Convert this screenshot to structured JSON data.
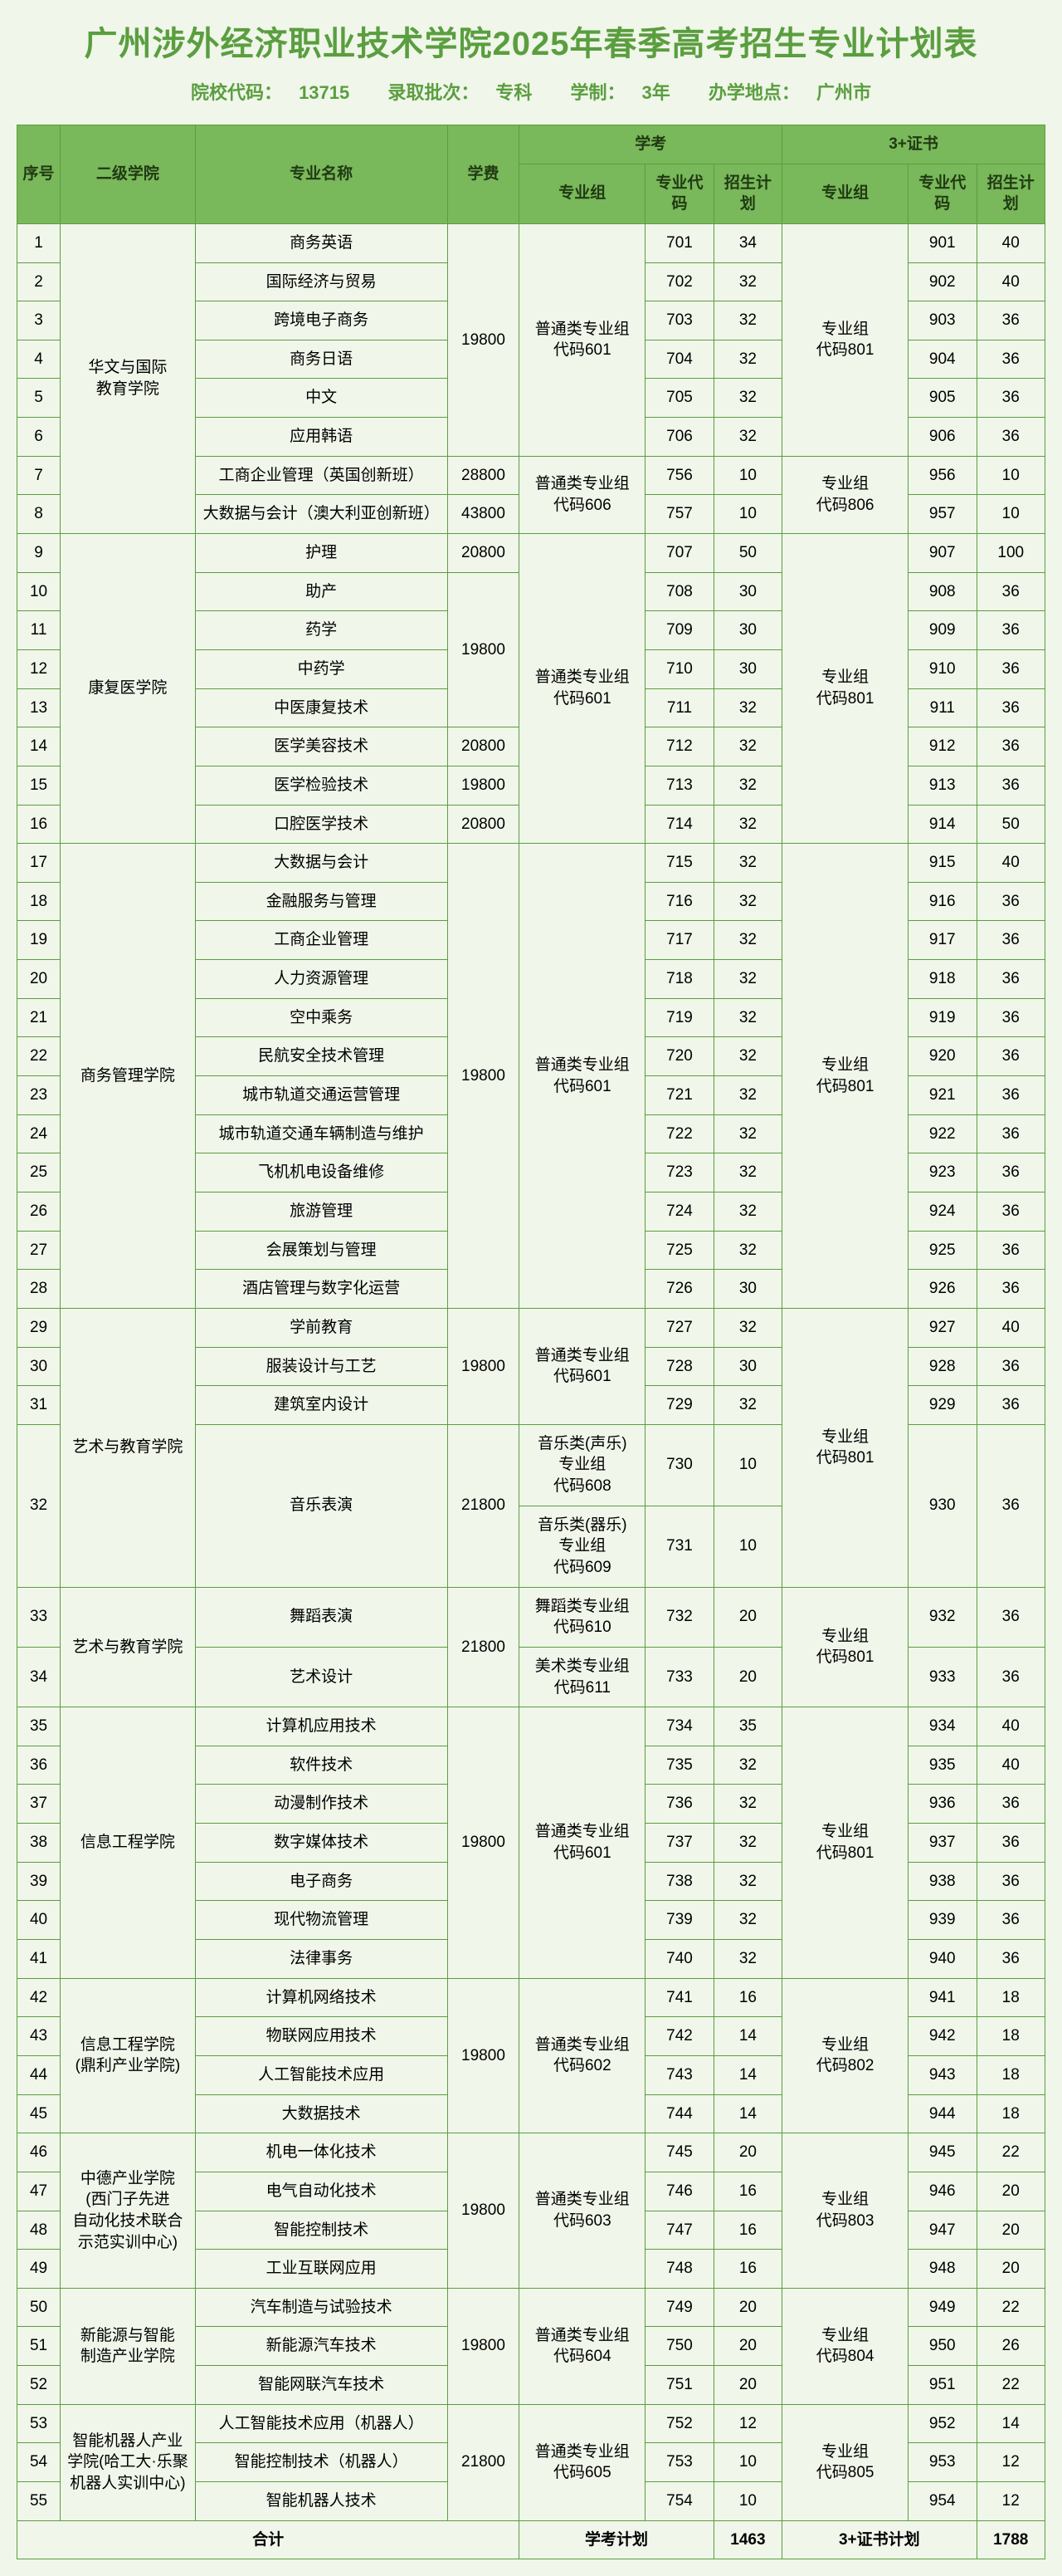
{
  "title": "广州涉外经济职业技术学院2025年春季高考招生专业计划表",
  "subtitle": {
    "school_code_label": "院校代码：",
    "school_code": "13715",
    "batch_label": "录取批次：",
    "batch": "专科",
    "system_label": "学制：",
    "system": "3年",
    "location_label": "办学地点：",
    "location": "广州市"
  },
  "headers": {
    "seq": "序号",
    "college": "二级学院",
    "major": "专业名称",
    "fee": "学费",
    "xk": "学考",
    "zs": "3+证书",
    "group": "专业组",
    "code": "专业代码",
    "plan": "招生计划"
  },
  "colleges": {
    "c1": "华文与国际\n教育学院",
    "c2": "康复医学院",
    "c3": "商务管理学院",
    "c4": "艺术与教育学院",
    "c4b": "艺术与教育学院",
    "c5": "信息工程学院",
    "c6": "信息工程学院\n(鼎利产业学院)",
    "c7": "中德产业学院\n(西门子先进\n自动化技术联合\n示范实训中心)",
    "c8": "新能源与智能\n制造产业学院",
    "c9": "智能机器人产业\n学院(哈工大·乐聚\n机器人实训中心)"
  },
  "groups": {
    "g601": "普通类专业组\n代码601",
    "g602": "普通类专业组\n代码602",
    "g603": "普通类专业组\n代码603",
    "g604": "普通类专业组\n代码604",
    "g605": "普通类专业组\n代码605",
    "g606": "普通类专业组\n代码606",
    "g608": "音乐类(声乐)\n专业组\n代码608",
    "g609": "音乐类(器乐)\n专业组\n代码609",
    "g610": "舞蹈类专业组\n代码610",
    "g611": "美术类专业组\n代码611",
    "g801": "专业组\n代码801",
    "g802": "专业组\n代码802",
    "g803": "专业组\n代码803",
    "g804": "专业组\n代码804",
    "g805": "专业组\n代码805",
    "g806": "专业组\n代码806"
  },
  "rows": [
    {
      "n": "1",
      "m": "商务英语",
      "f": "",
      "xc": "701",
      "xp": "34",
      "zc": "901",
      "zp": "40"
    },
    {
      "n": "2",
      "m": "国际经济与贸易",
      "f": "",
      "xc": "702",
      "xp": "32",
      "zc": "902",
      "zp": "40"
    },
    {
      "n": "3",
      "m": "跨境电子商务",
      "f": "",
      "xc": "703",
      "xp": "32",
      "zc": "903",
      "zp": "36"
    },
    {
      "n": "4",
      "m": "商务日语",
      "f": "",
      "xc": "704",
      "xp": "32",
      "zc": "904",
      "zp": "36"
    },
    {
      "n": "5",
      "m": "中文",
      "f": "",
      "xc": "705",
      "xp": "32",
      "zc": "905",
      "zp": "36"
    },
    {
      "n": "6",
      "m": "应用韩语",
      "f": "",
      "xc": "706",
      "xp": "32",
      "zc": "906",
      "zp": "36"
    },
    {
      "n": "7",
      "m": "工商企业管理（英国创新班）",
      "f": "28800",
      "xc": "756",
      "xp": "10",
      "zc": "956",
      "zp": "10"
    },
    {
      "n": "8",
      "m": "大数据与会计（澳大利亚创新班）",
      "f": "43800",
      "xc": "757",
      "xp": "10",
      "zc": "957",
      "zp": "10"
    },
    {
      "n": "9",
      "m": "护理",
      "f": "20800",
      "xc": "707",
      "xp": "50",
      "zc": "907",
      "zp": "100"
    },
    {
      "n": "10",
      "m": "助产",
      "f": "",
      "xc": "708",
      "xp": "30",
      "zc": "908",
      "zp": "36"
    },
    {
      "n": "11",
      "m": "药学",
      "f": "",
      "xc": "709",
      "xp": "30",
      "zc": "909",
      "zp": "36"
    },
    {
      "n": "12",
      "m": "中药学",
      "f": "",
      "xc": "710",
      "xp": "30",
      "zc": "910",
      "zp": "36"
    },
    {
      "n": "13",
      "m": "中医康复技术",
      "f": "",
      "xc": "711",
      "xp": "32",
      "zc": "911",
      "zp": "36"
    },
    {
      "n": "14",
      "m": "医学美容技术",
      "f": "20800",
      "xc": "712",
      "xp": "32",
      "zc": "912",
      "zp": "36"
    },
    {
      "n": "15",
      "m": "医学检验技术",
      "f": "19800",
      "xc": "713",
      "xp": "32",
      "zc": "913",
      "zp": "36"
    },
    {
      "n": "16",
      "m": "口腔医学技术",
      "f": "20800",
      "xc": "714",
      "xp": "32",
      "zc": "914",
      "zp": "50"
    },
    {
      "n": "17",
      "m": "大数据与会计",
      "f": "",
      "xc": "715",
      "xp": "32",
      "zc": "915",
      "zp": "40"
    },
    {
      "n": "18",
      "m": "金融服务与管理",
      "f": "",
      "xc": "716",
      "xp": "32",
      "zc": "916",
      "zp": "36"
    },
    {
      "n": "19",
      "m": "工商企业管理",
      "f": "",
      "xc": "717",
      "xp": "32",
      "zc": "917",
      "zp": "36"
    },
    {
      "n": "20",
      "m": "人力资源管理",
      "f": "",
      "xc": "718",
      "xp": "32",
      "zc": "918",
      "zp": "36"
    },
    {
      "n": "21",
      "m": "空中乘务",
      "f": "",
      "xc": "719",
      "xp": "32",
      "zc": "919",
      "zp": "36"
    },
    {
      "n": "22",
      "m": "民航安全技术管理",
      "f": "",
      "xc": "720",
      "xp": "32",
      "zc": "920",
      "zp": "36"
    },
    {
      "n": "23",
      "m": "城市轨道交通运营管理",
      "f": "",
      "xc": "721",
      "xp": "32",
      "zc": "921",
      "zp": "36"
    },
    {
      "n": "24",
      "m": "城市轨道交通车辆制造与维护",
      "f": "",
      "xc": "722",
      "xp": "32",
      "zc": "922",
      "zp": "36"
    },
    {
      "n": "25",
      "m": "飞机机电设备维修",
      "f": "",
      "xc": "723",
      "xp": "32",
      "zc": "923",
      "zp": "36"
    },
    {
      "n": "26",
      "m": "旅游管理",
      "f": "",
      "xc": "724",
      "xp": "32",
      "zc": "924",
      "zp": "36"
    },
    {
      "n": "27",
      "m": "会展策划与管理",
      "f": "",
      "xc": "725",
      "xp": "32",
      "zc": "925",
      "zp": "36"
    },
    {
      "n": "28",
      "m": "酒店管理与数字化运营",
      "f": "",
      "xc": "726",
      "xp": "30",
      "zc": "926",
      "zp": "36"
    },
    {
      "n": "29",
      "m": "学前教育",
      "f": "",
      "xc": "727",
      "xp": "32",
      "zc": "927",
      "zp": "40"
    },
    {
      "n": "30",
      "m": "服装设计与工艺",
      "f": "",
      "xc": "728",
      "xp": "30",
      "zc": "928",
      "zp": "36"
    },
    {
      "n": "31",
      "m": "建筑室内设计",
      "f": "",
      "xc": "729",
      "xp": "32",
      "zc": "929",
      "zp": "36"
    },
    {
      "n": "32",
      "m": "音乐表演",
      "f": "21800",
      "xc": "730",
      "xp": "10",
      "zc": "930",
      "zp": "36"
    },
    {
      "n": "",
      "m": "",
      "f": "",
      "xc": "731",
      "xp": "10",
      "zc": "",
      "zp": ""
    },
    {
      "n": "33",
      "m": "舞蹈表演",
      "f": "",
      "xc": "732",
      "xp": "20",
      "zc": "932",
      "zp": "36"
    },
    {
      "n": "34",
      "m": "艺术设计",
      "f": "",
      "xc": "733",
      "xp": "20",
      "zc": "933",
      "zp": "36"
    },
    {
      "n": "35",
      "m": "计算机应用技术",
      "f": "",
      "xc": "734",
      "xp": "35",
      "zc": "934",
      "zp": "40"
    },
    {
      "n": "36",
      "m": "软件技术",
      "f": "",
      "xc": "735",
      "xp": "32",
      "zc": "935",
      "zp": "40"
    },
    {
      "n": "37",
      "m": "动漫制作技术",
      "f": "",
      "xc": "736",
      "xp": "32",
      "zc": "936",
      "zp": "36"
    },
    {
      "n": "38",
      "m": "数字媒体技术",
      "f": "",
      "xc": "737",
      "xp": "32",
      "zc": "937",
      "zp": "36"
    },
    {
      "n": "39",
      "m": "电子商务",
      "f": "",
      "xc": "738",
      "xp": "32",
      "zc": "938",
      "zp": "36"
    },
    {
      "n": "40",
      "m": "现代物流管理",
      "f": "",
      "xc": "739",
      "xp": "32",
      "zc": "939",
      "zp": "36"
    },
    {
      "n": "41",
      "m": "法律事务",
      "f": "",
      "xc": "740",
      "xp": "32",
      "zc": "940",
      "zp": "36"
    },
    {
      "n": "42",
      "m": "计算机网络技术",
      "f": "",
      "xc": "741",
      "xp": "16",
      "zc": "941",
      "zp": "18"
    },
    {
      "n": "43",
      "m": "物联网应用技术",
      "f": "",
      "xc": "742",
      "xp": "14",
      "zc": "942",
      "zp": "18"
    },
    {
      "n": "44",
      "m": "人工智能技术应用",
      "f": "",
      "xc": "743",
      "xp": "14",
      "zc": "943",
      "zp": "18"
    },
    {
      "n": "45",
      "m": "大数据技术",
      "f": "",
      "xc": "744",
      "xp": "14",
      "zc": "944",
      "zp": "18"
    },
    {
      "n": "46",
      "m": "机电一体化技术",
      "f": "",
      "xc": "745",
      "xp": "20",
      "zc": "945",
      "zp": "22"
    },
    {
      "n": "47",
      "m": "电气自动化技术",
      "f": "",
      "xc": "746",
      "xp": "16",
      "zc": "946",
      "zp": "20"
    },
    {
      "n": "48",
      "m": "智能控制技术",
      "f": "",
      "xc": "747",
      "xp": "16",
      "zc": "947",
      "zp": "20"
    },
    {
      "n": "49",
      "m": "工业互联网应用",
      "f": "",
      "xc": "748",
      "xp": "16",
      "zc": "948",
      "zp": "20"
    },
    {
      "n": "50",
      "m": "汽车制造与试验技术",
      "f": "",
      "xc": "749",
      "xp": "20",
      "zc": "949",
      "zp": "22"
    },
    {
      "n": "51",
      "m": "新能源汽车技术",
      "f": "",
      "xc": "750",
      "xp": "20",
      "zc": "950",
      "zp": "26"
    },
    {
      "n": "52",
      "m": "智能网联汽车技术",
      "f": "",
      "xc": "751",
      "xp": "20",
      "zc": "951",
      "zp": "22"
    },
    {
      "n": "53",
      "m": "人工智能技术应用（机器人）",
      "f": "",
      "xc": "752",
      "xp": "12",
      "zc": "952",
      "zp": "14"
    },
    {
      "n": "54",
      "m": "智能控制技术（机器人）",
      "f": "",
      "xc": "753",
      "xp": "10",
      "zc": "953",
      "zp": "12"
    },
    {
      "n": "55",
      "m": "智能机器人技术",
      "f": "",
      "xc": "754",
      "xp": "10",
      "zc": "954",
      "zp": "12"
    }
  ],
  "fees": {
    "f19800": "19800"
  },
  "total": {
    "label": "合计",
    "xk_label": "学考计划",
    "xk_total": "1463",
    "zs_label": "3+证书计划",
    "zs_total": "1788"
  }
}
